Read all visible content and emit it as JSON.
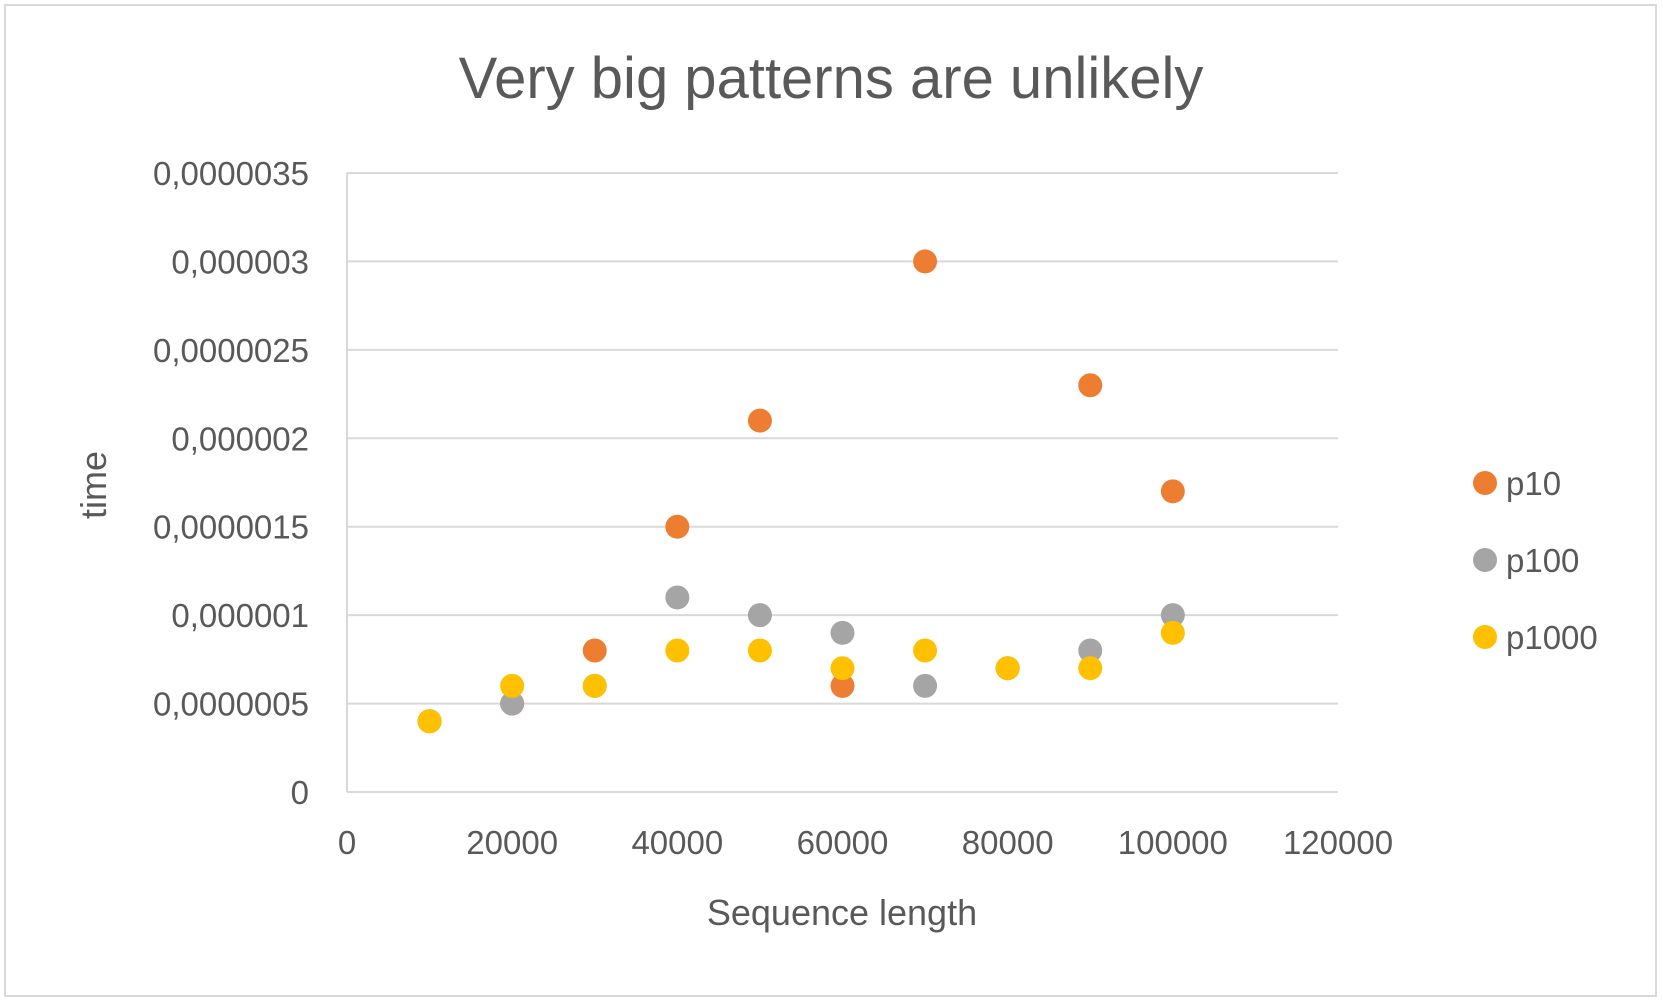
{
  "chart_data": {
    "type": "scatter",
    "title": "Very big patterns are unlikely",
    "xlabel": "Sequence length",
    "ylabel": "time",
    "xlim": [
      0,
      120000
    ],
    "ylim": [
      0,
      3.5e-06
    ],
    "x_ticks": [
      0,
      20000,
      40000,
      60000,
      80000,
      100000,
      120000
    ],
    "x_tick_labels": [
      "0",
      "20000",
      "40000",
      "60000",
      "80000",
      "100000",
      "120000"
    ],
    "y_ticks": [
      0,
      5e-07,
      1e-06,
      1.5e-06,
      2e-06,
      2.5e-06,
      3e-06,
      3.5e-06
    ],
    "y_tick_labels": [
      "0",
      "0,0000005",
      "0,000001",
      "0,0000015",
      "0,000002",
      "0,0000025",
      "0,000003",
      "0,0000035"
    ],
    "grid": "horizontal",
    "legend_position": "right",
    "series": [
      {
        "name": "p10",
        "color": "#ED7D31",
        "x": [
          10000,
          20000,
          30000,
          40000,
          50000,
          60000,
          70000,
          80000,
          90000,
          100000
        ],
        "y": [
          4e-07,
          5e-07,
          8e-07,
          1.5e-06,
          2.1e-06,
          6e-07,
          3e-06,
          7e-07,
          2.3e-06,
          1.7e-06
        ]
      },
      {
        "name": "p100",
        "color": "#A5A5A5",
        "x": [
          10000,
          20000,
          30000,
          40000,
          50000,
          60000,
          70000,
          80000,
          90000,
          100000
        ],
        "y": [
          4e-07,
          5e-07,
          6e-07,
          1.1e-06,
          1e-06,
          9e-07,
          6e-07,
          7e-07,
          8e-07,
          1e-06
        ]
      },
      {
        "name": "p1000",
        "color": "#FFC000",
        "x": [
          10000,
          20000,
          30000,
          40000,
          50000,
          60000,
          70000,
          80000,
          90000,
          100000
        ],
        "y": [
          4e-07,
          6e-07,
          6e-07,
          8e-07,
          8e-07,
          7e-07,
          8e-07,
          7e-07,
          7e-07,
          9e-07
        ]
      }
    ]
  },
  "colors": {
    "gridline": "#d9d9d9",
    "text": "#595959",
    "border": "#d9d9d9"
  }
}
